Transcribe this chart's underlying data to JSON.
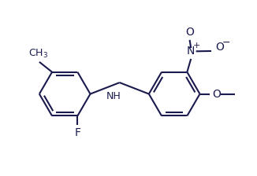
{
  "line_color": "#1a1a4e",
  "bg_color": "#ffffff",
  "bond_width": 1.5,
  "font_size": 9,
  "fig_width": 3.26,
  "fig_height": 2.24,
  "dpi": 100,
  "xlim": [
    0,
    10
  ],
  "ylim": [
    0,
    6.87
  ]
}
